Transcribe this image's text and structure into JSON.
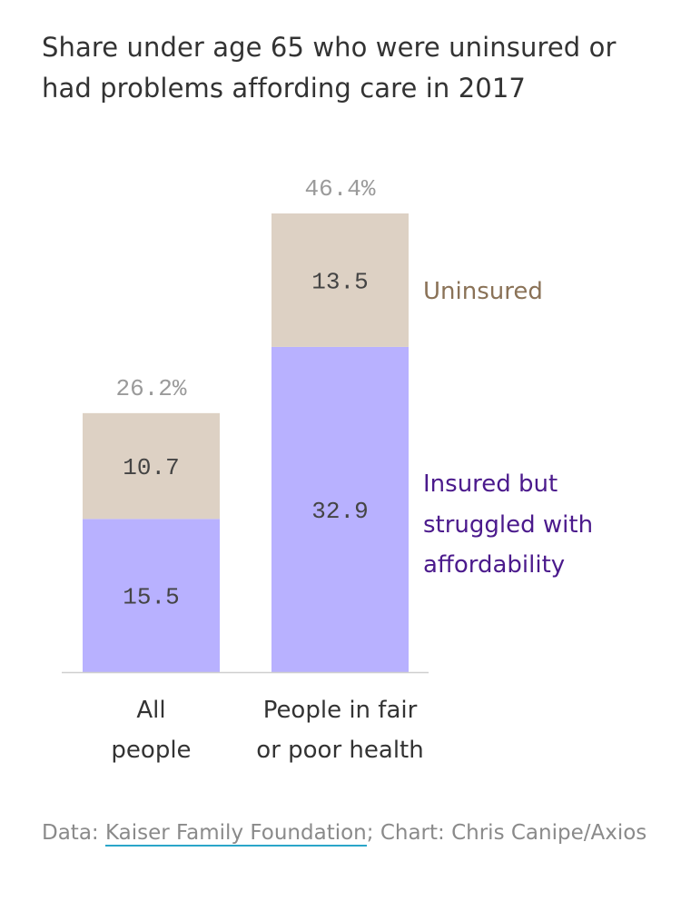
{
  "chart_data": {
    "type": "bar",
    "stacked": true,
    "title": "Share under age 65 who were uninsured or had problems affording care in 2017",
    "categories": [
      [
        "All",
        "people"
      ],
      [
        "People in fair",
        "or poor health"
      ]
    ],
    "totals": [
      "26.2%",
      "46.4%"
    ],
    "series": [
      {
        "name": "Insured but struggled with affordability",
        "label_lines": [
          "Insured but",
          "struggled with",
          "affordability"
        ],
        "values": [
          15.5,
          32.9
        ],
        "color": "#b8b1ff",
        "label_color": "#4b1a8c"
      },
      {
        "name": "Uninsured",
        "label_lines": [
          "Uninsured"
        ],
        "values": [
          10.7,
          13.5
        ],
        "color": "#ddd1c4",
        "label_color": "#8a7257"
      }
    ],
    "value_label_color": "#444444",
    "total_label_color": "#9a9a9a",
    "xlabel": "",
    "ylabel": "",
    "ylim": [
      0,
      50
    ]
  },
  "source": {
    "prefix": "Data: ",
    "link": "Kaiser Family Foundation",
    "rest": "; Chart: Chris Canipe/Axios"
  }
}
